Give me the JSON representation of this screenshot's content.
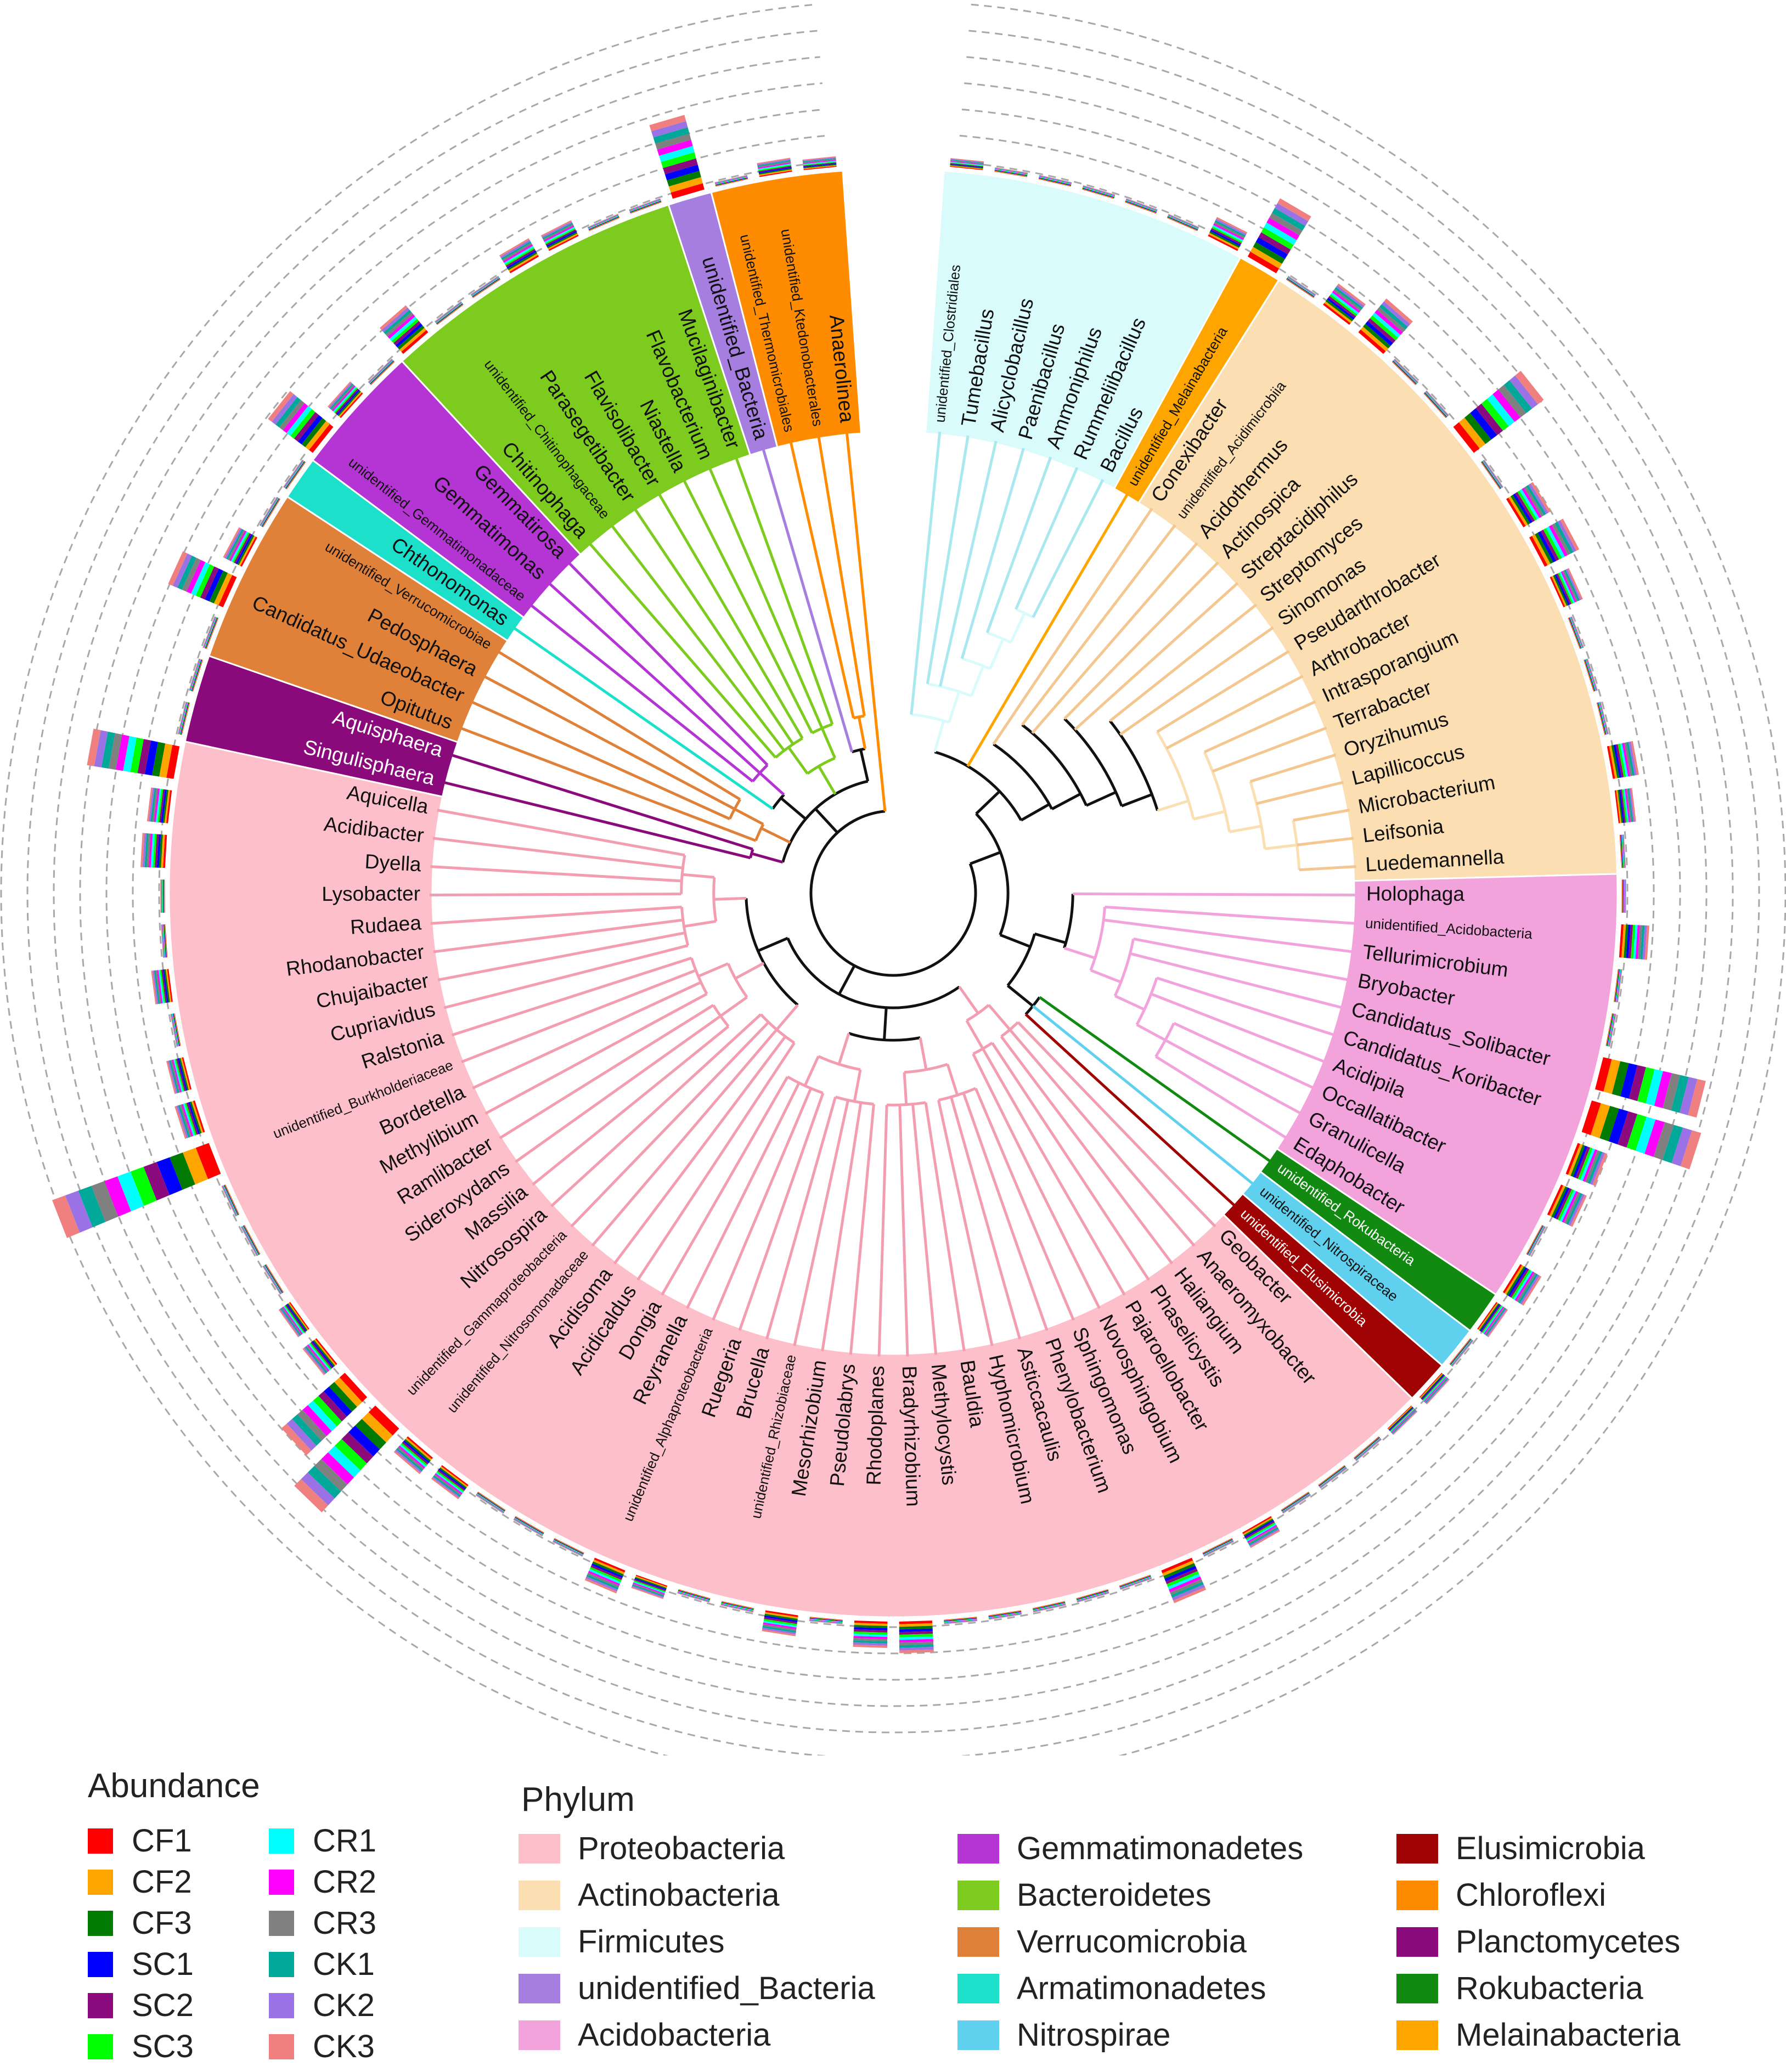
{
  "tip_order": [
    "unidentified_Clostridiales",
    "Tumebacillus",
    "Alicyclobacillus",
    "Paenibacillus",
    "Ammoniphilus",
    "Rummeliibacillus",
    "Bacillus",
    "unidentified_Melainabacteria",
    "Conexibacter",
    "unidentified_Acidimicrobiia",
    "Acidothermus",
    "Actinospica",
    "Streptacidiphilus",
    "Streptomyces",
    "Sinomonas",
    "Pseudarthrobacter",
    "Arthrobacter",
    "Intrasporangium",
    "Terrabacter",
    "Oryzihumus",
    "Lapillicoccus",
    "Microbacterium",
    "Leifsonia",
    "Luedemannella",
    "Holophaga",
    "unidentified_Acidobacteria",
    "Tellurimicrobium",
    "Bryobacter",
    "Candidatus_Solibacter",
    "Candidatus_Koribacter",
    "Acidipila",
    "Occallatibacter",
    "Granulicella",
    "Edaphobacter",
    "unidentified_Rokubacteria",
    "unidentified_Nitrospiraceae",
    "unidentified_Elusimicrobia",
    "Geobacter",
    "Anaeromyxobacter",
    "Haliangium",
    "Phaselicystis",
    "Pajaroellobacter",
    "Novosphingobium",
    "Sphingomonas",
    "Phenylobacterium",
    "Asticcacaulis",
    "Hyphomicrobium",
    "Bauldia",
    "Methylocystis",
    "Bradyrhizobium",
    "Rhodoplanes",
    "Pseudolabrys",
    "Mesorhizobium",
    "unidentified_Rhizobiaceae",
    "Brucella",
    "Ruegeria",
    "unidentified_Alphaproteobacteria",
    "Reyranella",
    "Dongia",
    "Acidicaldus",
    "Acidisoma",
    "unidentified_Nitrosomonadaceae",
    "unidentified_Gammaproteobacteria",
    "Nitrosospira",
    "Massilia",
    "Sideroxydans",
    "Ramlibacter",
    "Methylibium",
    "Bordetella",
    "unidentified_Burkholderiaceae",
    "Ralstonia",
    "Cupriavidus",
    "Chujaibacter",
    "Rhodanobacter",
    "Rudaea",
    "Lysobacter",
    "Dyella",
    "Acidibacter",
    "Aquicella",
    "Singulisphaera",
    "Aquisphaera",
    "Opitutus",
    "Candidatus_Udaeobacter",
    "Pedosphaera",
    "unidentified_Verrucomicrobiae",
    "Chthonomonas",
    "unidentified_Gemmatimonadaceae",
    "Gemmatimonas",
    "Gemmatirosa",
    "Chitinophaga",
    "unidentified_Chitinophagaceae",
    "Parasegetibacter",
    "Flavisolibacter",
    "Niastella",
    "Flavobacterium",
    "Mucilaginibacter",
    "unidentified_Bacteria",
    "unidentified_Thermomicrobiales",
    "unidentified_Ktedonobacterales",
    "Anaerolinea"
  ],
  "phylum_blocks": [
    {
      "phylum": "Firmicutes",
      "count": 7
    },
    {
      "phylum": "Melainabacteria",
      "count": 1
    },
    {
      "phylum": "Actinobacteria",
      "count": 16
    },
    {
      "phylum": "Acidobacteria",
      "count": 10
    },
    {
      "phylum": "Rokubacteria",
      "count": 1
    },
    {
      "phylum": "Nitrospirae",
      "count": 1
    },
    {
      "phylum": "Elusimicrobia",
      "count": 1
    },
    {
      "phylum": "Proteobacteria",
      "count": 42
    },
    {
      "phylum": "Planctomycetes",
      "count": 2
    },
    {
      "phylum": "Verrucomicrobia",
      "count": 4
    },
    {
      "phylum": "Armatimonadetes",
      "count": 1
    },
    {
      "phylum": "Gemmatimonadetes",
      "count": 3
    },
    {
      "phylum": "Bacteroidetes",
      "count": 7
    },
    {
      "phylum": "unidentified_Bacteria",
      "count": 1
    },
    {
      "phylum": "Chloroflexi",
      "count": 3
    }
  ],
  "phylum_colors": {
    "Proteobacteria": "#fdc0ca",
    "Actinobacteria": "#fbdeb2",
    "Firmicutes": "#d9fbfb",
    "unidentified_Bacteria": "#a57ee0",
    "Acidobacteria": "#f2a3dc",
    "Gemmatimonadetes": "#b535d4",
    "Bacteroidetes": "#7ccb1e",
    "Verrucomicrobia": "#e0813a",
    "Armatimonadetes": "#1de0cb",
    "Nitrospirae": "#5fd0ee",
    "Elusimicrobia": "#a00303",
    "Chloroflexi": "#ff8c00",
    "Planctomycetes": "#8a0a7c",
    "Rokubacteria": "#128a12",
    "Melainabacteria": "#ffa500"
  },
  "abundance_colors": {
    "CF1": "#ff0000",
    "CF2": "#ffa500",
    "CF3": "#007a00",
    "SC1": "#0000ff",
    "SC2": "#8b0a7e",
    "SC3": "#00ff00",
    "CR1": "#00ffff",
    "CR2": "#ff00ff",
    "CR3": "#808080",
    "CK1": "#00a89a",
    "CK2": "#9b72e6",
    "CK3": "#f08080"
  },
  "legend": {
    "abundance_title": "Abundance",
    "abundance_items": [
      "CF1",
      "CF2",
      "CF3",
      "SC1",
      "SC2",
      "SC3",
      "CR1",
      "CR2",
      "CR3",
      "CK1",
      "CK2",
      "CK3"
    ],
    "phylum_title": "Phylum",
    "phylum_items": [
      "Proteobacteria",
      "Actinobacteria",
      "Firmicutes",
      "unidentified_Bacteria",
      "Acidobacteria",
      "Gemmatimonadetes",
      "Bacteroidetes",
      "Verrucomicrobia",
      "Armatimonadetes",
      "Nitrospirae",
      "Elusimicrobia",
      "Chloroflexi",
      "Planctomycetes",
      "Rokubacteria",
      "Melainabacteria"
    ]
  },
  "abundance_scores": {
    "unidentified_Clostridiales": 0.5,
    "Bacillus": 1.2,
    "unidentified_Melainabacteria": 3.8,
    "unidentified_Acidimicrobiia": 1.5,
    "Acidothermus": 2.5,
    "Streptomyces": 5.0,
    "Pseudarthrobacter": 1.8,
    "Arthrobacter": 2.2,
    "Intrasporangium": 1.2,
    "Microbacterium": 1.5,
    "Leifsonia": 1.0,
    "unidentified_Acidobacteria": 1.6,
    "Candidatus_Solibacter": 6.0,
    "Candidatus_Koribacter": 6.5,
    "Acidipila": 1.8,
    "Occallatibacter": 1.6,
    "Edaphobacter": 1.4,
    "unidentified_Rokubacteria": 0.8,
    "unidentified_Elusimicrobia": 0.6,
    "Geobacter": 0.5,
    "Pajaroellobacter": 1.0,
    "Sphingomonas": 2.0,
    "Bradyrhizobium": 1.8,
    "Rhodoplanes": 1.5,
    "Mesorhizobium": 1.2,
    "unidentified_Alphaproteobacteria": 1.4,
    "Ruegeria": 0.8,
    "Acidisoma": 1.0,
    "unidentified_Nitrosomonadaceae": 1.2,
    "unidentified_Gammaproteobacteria": 6.5,
    "Nitrosospira": 4.8,
    "Massilia": 1.0,
    "Sideroxydans": 0.8,
    "unidentified_Burkholderiaceae": 9.5,
    "Ralstonia": 1.2,
    "Cupriavidus": 1.0,
    "Rhodanobacter": 1.0,
    "Dyella": 1.4,
    "Aquicella": 5.0,
    "Acidibacter": 1.2,
    "Candidatus_Udaeobacter": 3.4,
    "Pedosphaera": 1.2,
    "unidentified_Gemmatimonadaceae": 3.2,
    "Gemmatimonas": 1.0,
    "Chitinophaga": 2.0,
    "Flavisolibacter": 1.2,
    "Niastella": 1.0,
    "unidentified_Bacteria": 4.4,
    "unidentified_Ktedonobacterales": 0.8,
    "Anaerolinea": 0.6
  },
  "tree_clades": [
    [
      0,
      6
    ],
    [
      1,
      6
    ],
    [
      3,
      6
    ],
    [
      4,
      6
    ],
    [
      5,
      6
    ],
    [
      8,
      23
    ],
    [
      9,
      23
    ],
    [
      11,
      23
    ],
    [
      13,
      23
    ],
    [
      15,
      23
    ],
    [
      17,
      23
    ],
    [
      19,
      23
    ],
    [
      21,
      23
    ],
    [
      24,
      33
    ],
    [
      25,
      33
    ],
    [
      27,
      33
    ],
    [
      29,
      33
    ],
    [
      31,
      33
    ],
    [
      34,
      36
    ],
    [
      37,
      78
    ],
    [
      37,
      42
    ],
    [
      37,
      39
    ],
    [
      40,
      42
    ],
    [
      43,
      58
    ],
    [
      43,
      50
    ],
    [
      43,
      46
    ],
    [
      47,
      50
    ],
    [
      51,
      58
    ],
    [
      51,
      54
    ],
    [
      55,
      58
    ],
    [
      59,
      78
    ],
    [
      59,
      63
    ],
    [
      64,
      70
    ],
    [
      64,
      66
    ],
    [
      67,
      70
    ],
    [
      71,
      78
    ],
    [
      71,
      74
    ],
    [
      75,
      78
    ],
    [
      79,
      80
    ],
    [
      81,
      84
    ],
    [
      82,
      84
    ],
    [
      85,
      88
    ],
    [
      86,
      88
    ],
    [
      89,
      95
    ],
    [
      89,
      92
    ],
    [
      93,
      95
    ],
    [
      97,
      98
    ],
    [
      96,
      98
    ],
    [
      79,
      98
    ],
    [
      0,
      23
    ],
    [
      24,
      36
    ],
    [
      0,
      36
    ]
  ]
}
